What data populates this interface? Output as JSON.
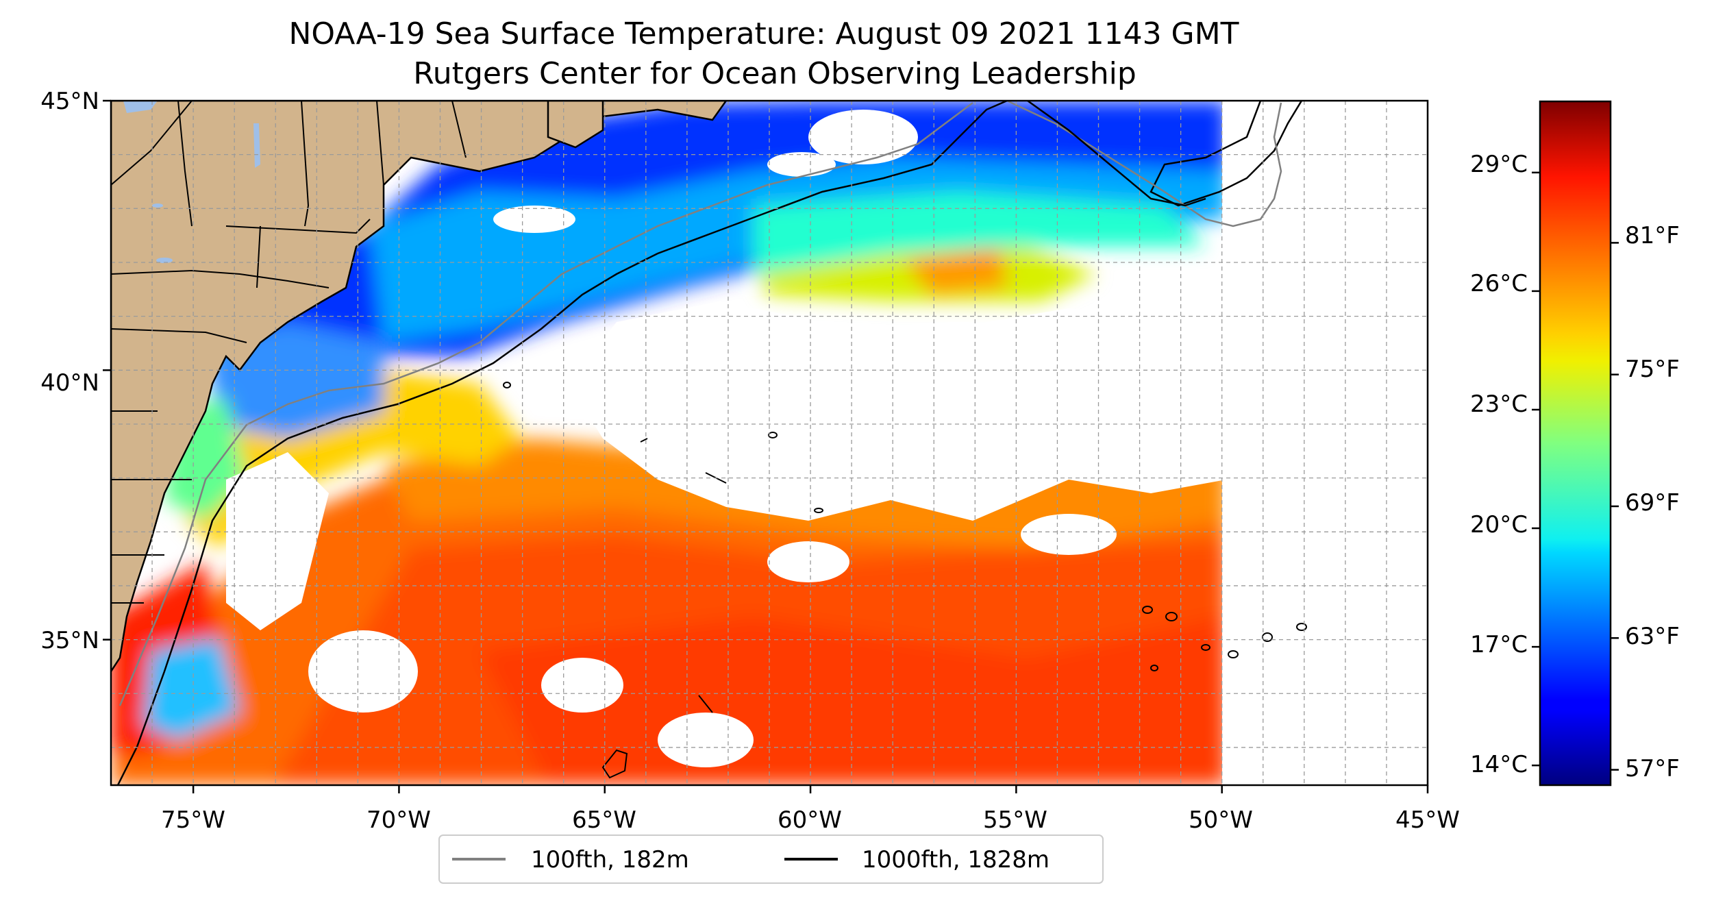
{
  "title": {
    "line1": "NOAA-19 Sea Surface Temperature: August 09 2021 1143 GMT",
    "line2": "Rutgers Center for Ocean Observing Leadership"
  },
  "map": {
    "lon_range": [
      -77,
      -45
    ],
    "lat_range": [
      32.3,
      45
    ],
    "colormap": "jet",
    "land_color": "#d2b48c",
    "lake_color": "#9fbfe8",
    "grid": true,
    "lon_ticks": [
      {
        "value": -75,
        "label": "75°W"
      },
      {
        "value": -70,
        "label": "70°W"
      },
      {
        "value": -65,
        "label": "65°W"
      },
      {
        "value": -60,
        "label": "60°W"
      },
      {
        "value": -55,
        "label": "55°W"
      },
      {
        "value": -50,
        "label": "50°W"
      },
      {
        "value": -45,
        "label": "45°W"
      }
    ],
    "lat_ticks": [
      {
        "value": 45,
        "label": "45°N"
      },
      {
        "value": 40,
        "label": "40°N"
      },
      {
        "value": 35,
        "label": "35°N"
      }
    ]
  },
  "colorbar": {
    "range_c": [
      13.5,
      30.8
    ],
    "celsius_ticks": [
      {
        "value": 29,
        "label": "29°C"
      },
      {
        "value": 26,
        "label": "26°C"
      },
      {
        "value": 23,
        "label": "23°C"
      },
      {
        "value": 20,
        "label": "20°C"
      },
      {
        "value": 17,
        "label": "17°C"
      },
      {
        "value": 14,
        "label": "14°C"
      }
    ],
    "fahrenheit_ticks": [
      {
        "value": 81,
        "label": "81°F"
      },
      {
        "value": 75,
        "label": "75°F"
      },
      {
        "value": 69,
        "label": "69°F"
      },
      {
        "value": 63,
        "label": "63°F"
      },
      {
        "value": 57,
        "label": "57°F"
      }
    ]
  },
  "legend": {
    "placement": "bottom-center",
    "items": [
      {
        "label": "100fth, 182m",
        "color": "#808080"
      },
      {
        "label": "1000fth, 1828m",
        "color": "#000000"
      }
    ]
  }
}
